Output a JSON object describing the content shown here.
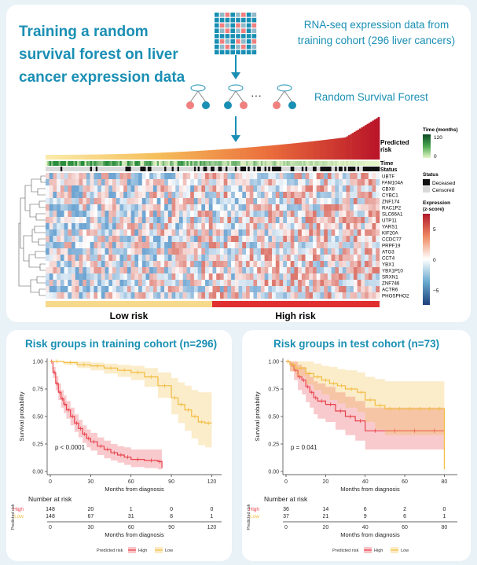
{
  "top": {
    "title": "Training a random survival forest on liver cancer expression data",
    "rnaseq_label": "RNA-seq expression data from training cohort (296 liver cancers)",
    "forest_label": "Random Survival Forest",
    "ellipsis": "···",
    "heatmap": {
      "predicted_risk_label": "Predicted risk",
      "time_label": "Time",
      "status_label": "Status",
      "genes": [
        "UBTF",
        "FAM104A",
        "CBX8",
        "CYBC1",
        "ZNF174",
        "RAC1P2",
        "SLC66A1",
        "UTP11",
        "YARS1",
        "KIF20A",
        "CCDC77",
        "PRPF19",
        "ATG3",
        "CCT4",
        "YBX1",
        "YBX1P10",
        "SRXN1",
        "ZNF746",
        "ACTR6",
        "PHOSPHO2"
      ],
      "legend_time_title": "Time (months)",
      "legend_time_max": "120",
      "legend_time_min": "0",
      "legend_status_title": "Status",
      "legend_status_deceased": "Deceased",
      "legend_status_censored": "Censored",
      "legend_expr_title": "Expression (z-score)",
      "legend_expr_ticks": [
        "5",
        "0",
        "−5"
      ],
      "low_risk_label": "Low risk",
      "high_risk_label": "High risk",
      "colors": {
        "low": "#f7d98c",
        "high": "#e03030",
        "teal": "#1a8fb4"
      }
    }
  },
  "chart_data": [
    {
      "type": "line",
      "title": "Risk groups in training cohort (n=296)",
      "xlabel": "Months from diagnosis",
      "ylabel": "Survival probability",
      "xlim": [
        0,
        125
      ],
      "ylim": [
        0,
        1
      ],
      "xticks": [
        0,
        30,
        60,
        90,
        120
      ],
      "yticks": [
        "0.00",
        "0.25",
        "0.50",
        "0.75",
        "1.00"
      ],
      "pvalue": "p < 0.0001",
      "series": [
        {
          "name": "High",
          "color": "#e8404a",
          "x": [
            0,
            2,
            4,
            6,
            8,
            10,
            12,
            15,
            18,
            21,
            24,
            27,
            30,
            35,
            40,
            45,
            50,
            55,
            60,
            70,
            80,
            83
          ],
          "y": [
            1.0,
            0.9,
            0.8,
            0.72,
            0.66,
            0.61,
            0.56,
            0.5,
            0.44,
            0.39,
            0.34,
            0.3,
            0.27,
            0.23,
            0.2,
            0.17,
            0.15,
            0.13,
            0.11,
            0.1,
            0.09,
            0.03
          ],
          "ci_upper": [
            1.0,
            0.95,
            0.87,
            0.8,
            0.74,
            0.69,
            0.64,
            0.58,
            0.52,
            0.47,
            0.42,
            0.38,
            0.35,
            0.31,
            0.28,
            0.25,
            0.23,
            0.22,
            0.2,
            0.2,
            0.2,
            0.2
          ],
          "ci_lower": [
            1.0,
            0.85,
            0.74,
            0.65,
            0.58,
            0.53,
            0.48,
            0.42,
            0.36,
            0.31,
            0.26,
            0.22,
            0.19,
            0.15,
            0.12,
            0.1,
            0.08,
            0.06,
            0.04,
            0.03,
            0.02,
            0.0
          ]
        },
        {
          "name": "Low",
          "color": "#f2bc3f",
          "x": [
            0,
            10,
            20,
            30,
            40,
            50,
            60,
            70,
            80,
            90,
            95,
            100,
            105,
            110,
            115,
            120
          ],
          "y": [
            1.0,
            0.99,
            0.97,
            0.96,
            0.94,
            0.92,
            0.9,
            0.86,
            0.78,
            0.67,
            0.61,
            0.56,
            0.5,
            0.45,
            0.44,
            0.44
          ],
          "ci_upper": [
            1.0,
            1.0,
            1.0,
            0.99,
            0.98,
            0.97,
            0.96,
            0.94,
            0.9,
            0.85,
            0.81,
            0.78,
            0.74,
            0.72,
            0.72,
            0.72
          ],
          "ci_lower": [
            1.0,
            0.97,
            0.94,
            0.92,
            0.89,
            0.86,
            0.83,
            0.77,
            0.67,
            0.52,
            0.44,
            0.37,
            0.3,
            0.24,
            0.22,
            0.22
          ]
        }
      ],
      "risk_table": {
        "title": "Number at risk",
        "ylabel": "Predicted risk",
        "rows": [
          {
            "label": "High",
            "values": [
              "148",
              "20",
              "1",
              "0",
              "0"
            ]
          },
          {
            "label": "Low",
            "values": [
              "148",
              "67",
              "31",
              "8",
              "1"
            ]
          }
        ]
      },
      "legend": {
        "title": "Predicted risk",
        "items": [
          "High",
          "Low"
        ]
      }
    },
    {
      "type": "line",
      "title": "Risk groups in test cohort (n=73)",
      "xlabel": "Months from diagnosis",
      "ylabel": "Survival probability",
      "xlim": [
        0,
        85
      ],
      "ylim": [
        0,
        1
      ],
      "xticks": [
        0,
        20,
        40,
        60,
        80
      ],
      "yticks": [
        "0.00",
        "0.25",
        "0.50",
        "0.75",
        "1.00"
      ],
      "pvalue": "p = 0.041",
      "series": [
        {
          "name": "High",
          "color": "#e8404a",
          "x": [
            0,
            2,
            4,
            6,
            8,
            10,
            12,
            14,
            16,
            20,
            25,
            30,
            35,
            40,
            50,
            60,
            70,
            80
          ],
          "y": [
            1.0,
            0.97,
            0.92,
            0.86,
            0.83,
            0.77,
            0.72,
            0.67,
            0.64,
            0.61,
            0.55,
            0.5,
            0.46,
            0.37,
            0.37,
            0.37,
            0.37,
            0.37
          ],
          "ci_upper": [
            1.0,
            1.0,
            1.0,
            0.97,
            0.95,
            0.9,
            0.86,
            0.82,
            0.8,
            0.77,
            0.72,
            0.68,
            0.64,
            0.58,
            0.58,
            0.58,
            0.58,
            0.58
          ],
          "ci_lower": [
            1.0,
            0.91,
            0.83,
            0.74,
            0.7,
            0.63,
            0.58,
            0.52,
            0.48,
            0.45,
            0.38,
            0.33,
            0.28,
            0.2,
            0.2,
            0.2,
            0.2,
            0.2
          ]
        },
        {
          "name": "Low",
          "color": "#f2bc3f",
          "x": [
            0,
            2,
            5,
            10,
            14,
            18,
            22,
            26,
            30,
            36,
            40,
            45,
            50,
            55,
            60,
            65,
            70,
            75,
            80
          ],
          "y": [
            1.0,
            0.97,
            0.94,
            0.89,
            0.86,
            0.83,
            0.8,
            0.78,
            0.75,
            0.72,
            0.65,
            0.6,
            0.57,
            0.57,
            0.57,
            0.57,
            0.57,
            0.57,
            0.02
          ],
          "ci_upper": [
            1.0,
            1.0,
            1.0,
            1.0,
            0.98,
            0.96,
            0.95,
            0.93,
            0.92,
            0.9,
            0.86,
            0.84,
            0.82,
            0.82,
            0.82,
            0.82,
            0.82,
            0.82,
            0.82
          ],
          "ci_lower": [
            1.0,
            0.91,
            0.86,
            0.79,
            0.74,
            0.7,
            0.65,
            0.62,
            0.58,
            0.54,
            0.45,
            0.38,
            0.33,
            0.33,
            0.33,
            0.33,
            0.33,
            0.33,
            0.02
          ]
        }
      ],
      "risk_table": {
        "title": "Number at risk",
        "ylabel": "Predicted risk",
        "rows": [
          {
            "label": "High",
            "values": [
              "36",
              "14",
              "6",
              "2",
              "0"
            ]
          },
          {
            "label": "Low",
            "values": [
              "37",
              "21",
              "9",
              "6",
              "1"
            ]
          }
        ]
      },
      "legend": {
        "title": "Predicted risk",
        "items": [
          "High",
          "Low"
        ]
      }
    }
  ]
}
